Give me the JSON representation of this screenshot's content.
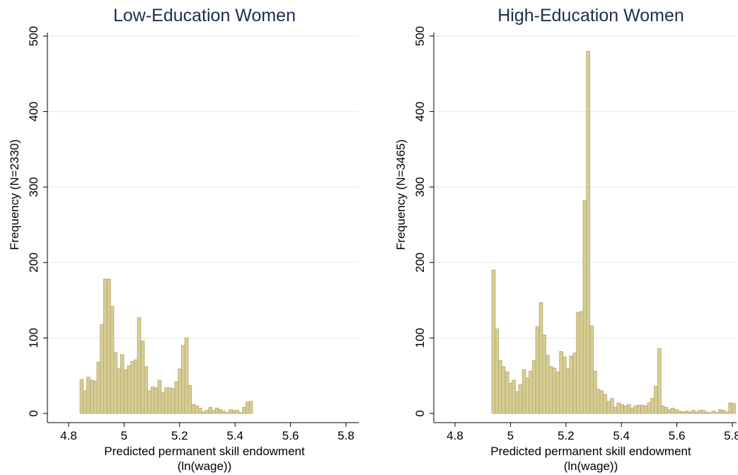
{
  "chart_data": [
    {
      "type": "bar",
      "title": "Low-Education Women",
      "xlabel": [
        "Predicted permanent skill endowment",
        "(ln(wage))"
      ],
      "ylabel": "Frequency (N=2330)",
      "xlim": [
        4.8,
        5.8
      ],
      "ylim": [
        0,
        500
      ],
      "xticks": [
        "4.8",
        "5",
        "5.2",
        "5.4",
        "5.6",
        "5.8"
      ],
      "yticks": [
        "0",
        "100",
        "200",
        "300",
        "400",
        "500"
      ],
      "grid": true,
      "bar_color": "#d7ce96",
      "bar_edge_color": "#b3a767",
      "bin_width": 0.0122,
      "bins": [
        {
          "x": 4.847,
          "y": 45
        },
        {
          "x": 4.859,
          "y": 30
        },
        {
          "x": 4.871,
          "y": 48
        },
        {
          "x": 4.884,
          "y": 44
        },
        {
          "x": 4.896,
          "y": 43
        },
        {
          "x": 4.908,
          "y": 68
        },
        {
          "x": 4.92,
          "y": 118
        },
        {
          "x": 4.932,
          "y": 178
        },
        {
          "x": 4.945,
          "y": 178
        },
        {
          "x": 4.957,
          "y": 142
        },
        {
          "x": 4.969,
          "y": 81
        },
        {
          "x": 4.981,
          "y": 59
        },
        {
          "x": 4.993,
          "y": 78
        },
        {
          "x": 5.006,
          "y": 58
        },
        {
          "x": 5.018,
          "y": 63
        },
        {
          "x": 5.03,
          "y": 69
        },
        {
          "x": 5.042,
          "y": 71
        },
        {
          "x": 5.054,
          "y": 127
        },
        {
          "x": 5.067,
          "y": 96
        },
        {
          "x": 5.079,
          "y": 62
        },
        {
          "x": 5.091,
          "y": 30
        },
        {
          "x": 5.103,
          "y": 35
        },
        {
          "x": 5.115,
          "y": 34
        },
        {
          "x": 5.128,
          "y": 44
        },
        {
          "x": 5.14,
          "y": 28
        },
        {
          "x": 5.152,
          "y": 34
        },
        {
          "x": 5.164,
          "y": 34
        },
        {
          "x": 5.176,
          "y": 33
        },
        {
          "x": 5.189,
          "y": 42
        },
        {
          "x": 5.201,
          "y": 59
        },
        {
          "x": 5.213,
          "y": 90
        },
        {
          "x": 5.225,
          "y": 100
        },
        {
          "x": 5.237,
          "y": 37
        },
        {
          "x": 5.25,
          "y": 12
        },
        {
          "x": 5.262,
          "y": 10
        },
        {
          "x": 5.274,
          "y": 7
        },
        {
          "x": 5.286,
          "y": 2
        },
        {
          "x": 5.298,
          "y": 4
        },
        {
          "x": 5.311,
          "y": 8
        },
        {
          "x": 5.323,
          "y": 4
        },
        {
          "x": 5.335,
          "y": 7
        },
        {
          "x": 5.347,
          "y": 5
        },
        {
          "x": 5.359,
          "y": 3
        },
        {
          "x": 5.372,
          "y": 1
        },
        {
          "x": 5.384,
          "y": 5
        },
        {
          "x": 5.396,
          "y": 4
        },
        {
          "x": 5.408,
          "y": 4
        },
        {
          "x": 5.42,
          "y": 1
        },
        {
          "x": 5.433,
          "y": 8
        },
        {
          "x": 5.445,
          "y": 15
        },
        {
          "x": 5.457,
          "y": 16
        }
      ]
    },
    {
      "type": "bar",
      "title": "High-Education Women",
      "xlabel": [
        "Predicted permanent skill endowment",
        "(ln(wage))"
      ],
      "ylabel": "Frequency (N=3465)",
      "xlim": [
        4.8,
        5.8
      ],
      "ylim": [
        0,
        500
      ],
      "xticks": [
        "4.8",
        "5",
        "5.2",
        "5.4",
        "5.6",
        "5.8"
      ],
      "yticks": [
        "0",
        "100",
        "200",
        "300",
        "400",
        "500"
      ],
      "grid": true,
      "bar_color": "#d7ce96",
      "bar_edge_color": "#b3a767",
      "bin_width": 0.0122,
      "bins": [
        {
          "x": 4.939,
          "y": 190
        },
        {
          "x": 4.951,
          "y": 112
        },
        {
          "x": 4.963,
          "y": 70
        },
        {
          "x": 4.975,
          "y": 62
        },
        {
          "x": 4.988,
          "y": 55
        },
        {
          "x": 5.0,
          "y": 40
        },
        {
          "x": 5.012,
          "y": 44
        },
        {
          "x": 5.024,
          "y": 29
        },
        {
          "x": 5.036,
          "y": 38
        },
        {
          "x": 5.049,
          "y": 58
        },
        {
          "x": 5.061,
          "y": 47
        },
        {
          "x": 5.073,
          "y": 56
        },
        {
          "x": 5.085,
          "y": 70
        },
        {
          "x": 5.097,
          "y": 115
        },
        {
          "x": 5.11,
          "y": 147
        },
        {
          "x": 5.122,
          "y": 104
        },
        {
          "x": 5.134,
          "y": 77
        },
        {
          "x": 5.146,
          "y": 62
        },
        {
          "x": 5.158,
          "y": 60
        },
        {
          "x": 5.171,
          "y": 55
        },
        {
          "x": 5.183,
          "y": 82
        },
        {
          "x": 5.195,
          "y": 75
        },
        {
          "x": 5.207,
          "y": 60
        },
        {
          "x": 5.219,
          "y": 76
        },
        {
          "x": 5.232,
          "y": 80
        },
        {
          "x": 5.244,
          "y": 134
        },
        {
          "x": 5.256,
          "y": 135
        },
        {
          "x": 5.268,
          "y": 282
        },
        {
          "x": 5.28,
          "y": 480
        },
        {
          "x": 5.293,
          "y": 116
        },
        {
          "x": 5.305,
          "y": 56
        },
        {
          "x": 5.317,
          "y": 32
        },
        {
          "x": 5.329,
          "y": 30
        },
        {
          "x": 5.341,
          "y": 25
        },
        {
          "x": 5.354,
          "y": 16
        },
        {
          "x": 5.366,
          "y": 20
        },
        {
          "x": 5.378,
          "y": 8
        },
        {
          "x": 5.39,
          "y": 14
        },
        {
          "x": 5.402,
          "y": 12
        },
        {
          "x": 5.415,
          "y": 10
        },
        {
          "x": 5.427,
          "y": 12
        },
        {
          "x": 5.439,
          "y": 7
        },
        {
          "x": 5.451,
          "y": 10
        },
        {
          "x": 5.463,
          "y": 11
        },
        {
          "x": 5.476,
          "y": 11
        },
        {
          "x": 5.488,
          "y": 10
        },
        {
          "x": 5.5,
          "y": 14
        },
        {
          "x": 5.512,
          "y": 20
        },
        {
          "x": 5.524,
          "y": 36
        },
        {
          "x": 5.537,
          "y": 86
        },
        {
          "x": 5.549,
          "y": 10
        },
        {
          "x": 5.561,
          "y": 8
        },
        {
          "x": 5.573,
          "y": 5
        },
        {
          "x": 5.585,
          "y": 7
        },
        {
          "x": 5.598,
          "y": 5
        },
        {
          "x": 5.61,
          "y": 3
        },
        {
          "x": 5.622,
          "y": 2
        },
        {
          "x": 5.634,
          "y": 3
        },
        {
          "x": 5.646,
          "y": 2
        },
        {
          "x": 5.659,
          "y": 4
        },
        {
          "x": 5.671,
          "y": 2
        },
        {
          "x": 5.683,
          "y": 4
        },
        {
          "x": 5.695,
          "y": 4
        },
        {
          "x": 5.707,
          "y": 2
        },
        {
          "x": 5.72,
          "y": 1
        },
        {
          "x": 5.732,
          "y": 3
        },
        {
          "x": 5.744,
          "y": 1
        },
        {
          "x": 5.756,
          "y": 5
        },
        {
          "x": 5.768,
          "y": 4
        },
        {
          "x": 5.781,
          "y": 2
        },
        {
          "x": 5.793,
          "y": 14
        },
        {
          "x": 5.805,
          "y": 13
        }
      ]
    }
  ]
}
